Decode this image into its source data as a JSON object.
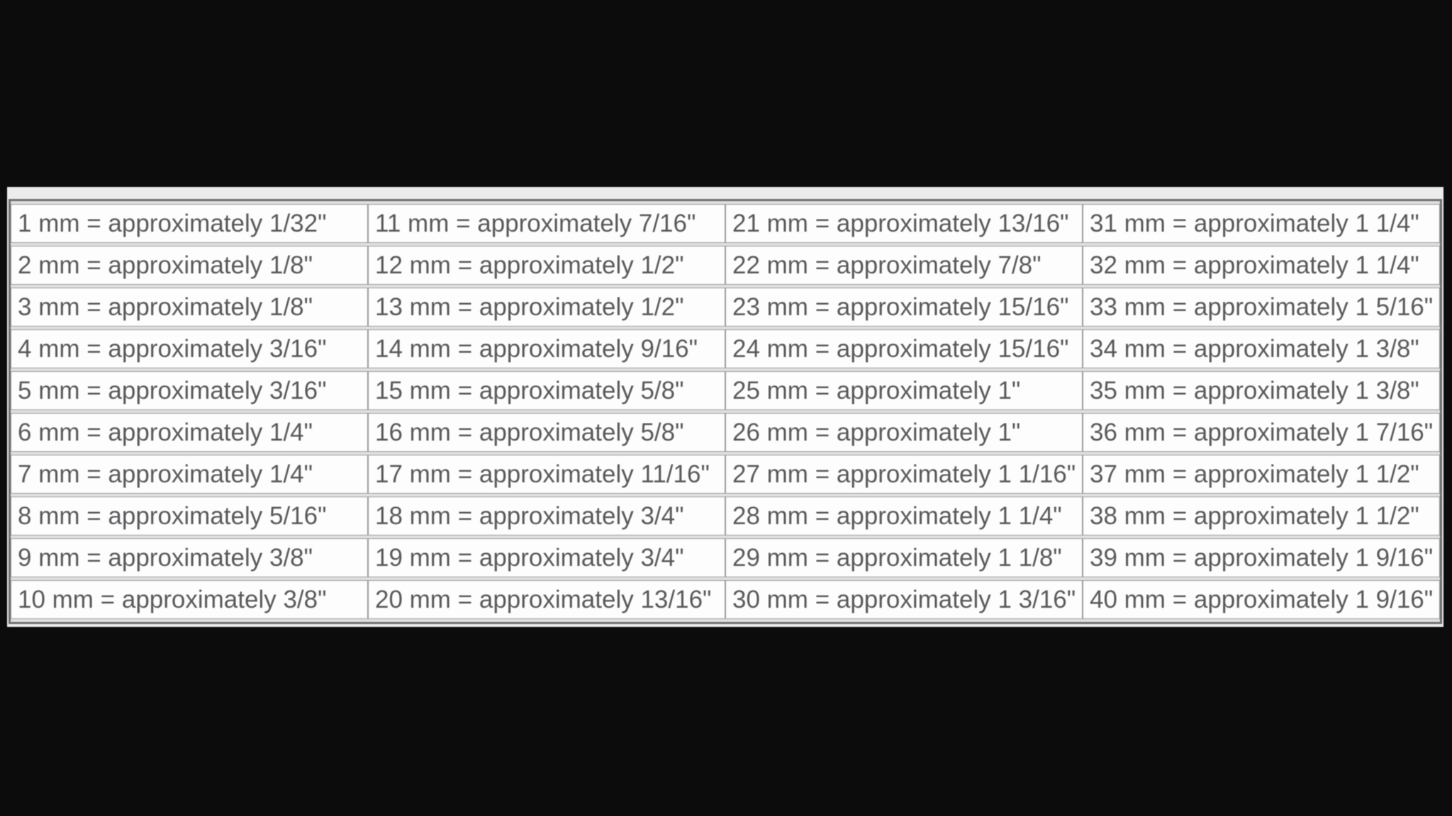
{
  "page": {
    "background_color": "#0c0c0c",
    "sheet_background_color": "#ececec",
    "cell_background_color": "#fdfdfd",
    "border_color": "#6e6e6e",
    "text_color": "#59595c"
  },
  "table": {
    "description": "Millimeters to approximate inches conversion table",
    "columns": [
      {
        "cells": [
          "1 mm = approximately 1/32\"",
          "2 mm = approximately 1/8\"",
          "3 mm = approximately 1/8\"",
          "4 mm = approximately 3/16\"",
          "5 mm = approximately 3/16\"",
          "6 mm = approximately 1/4\"",
          "7 mm = approximately 1/4\"",
          "8 mm = approximately 5/16\"",
          "9 mm = approximately 3/8\"",
          "10 mm = approximately 3/8\""
        ]
      },
      {
        "cells": [
          "11 mm = approximately 7/16\"",
          "12 mm = approximately 1/2\"",
          "13 mm = approximately 1/2\"",
          "14 mm = approximately 9/16\"",
          "15 mm = approximately 5/8\"",
          "16 mm = approximately 5/8\"",
          "17 mm = approximately 11/16\"",
          "18 mm = approximately 3/4\"",
          "19 mm = approximately 3/4\"",
          "20 mm = approximately 13/16\""
        ]
      },
      {
        "cells": [
          "21 mm = approximately 13/16\"",
          "22 mm = approximately 7/8\"",
          "23 mm = approximately 15/16\"",
          "24 mm = approximately 15/16\"",
          "25 mm = approximately 1\"",
          "26 mm = approximately 1\"",
          "27 mm = approximately 1 1/16\"",
          "28 mm = approximately 1 1/4\"",
          "29 mm = approximately 1 1/8\"",
          "30 mm = approximately 1 3/16\""
        ]
      },
      {
        "cells": [
          "31 mm = approximately 1 1/4\"",
          "32 mm = approximately 1 1/4\"",
          "33 mm = approximately 1 5/16\"",
          "34 mm = approximately 1 3/8\"",
          "35 mm = approximately 1 3/8\"",
          "36 mm = approximately 1 7/16\"",
          "37 mm = approximately 1 1/2\"",
          "38 mm = approximately 1 1/2\"",
          "39 mm = approximately 1 9/16\"",
          "40 mm = approximately 1 9/16\""
        ]
      }
    ]
  },
  "chart_data": {
    "type": "table",
    "title": "Millimeters to approximate inches conversion",
    "entries": [
      {
        "mm": 1,
        "inches": "1/32\""
      },
      {
        "mm": 2,
        "inches": "1/8\""
      },
      {
        "mm": 3,
        "inches": "1/8\""
      },
      {
        "mm": 4,
        "inches": "3/16\""
      },
      {
        "mm": 5,
        "inches": "3/16\""
      },
      {
        "mm": 6,
        "inches": "1/4\""
      },
      {
        "mm": 7,
        "inches": "1/4\""
      },
      {
        "mm": 8,
        "inches": "5/16\""
      },
      {
        "mm": 9,
        "inches": "3/8\""
      },
      {
        "mm": 10,
        "inches": "3/8\""
      },
      {
        "mm": 11,
        "inches": "7/16\""
      },
      {
        "mm": 12,
        "inches": "1/2\""
      },
      {
        "mm": 13,
        "inches": "1/2\""
      },
      {
        "mm": 14,
        "inches": "9/16\""
      },
      {
        "mm": 15,
        "inches": "5/8\""
      },
      {
        "mm": 16,
        "inches": "5/8\""
      },
      {
        "mm": 17,
        "inches": "11/16\""
      },
      {
        "mm": 18,
        "inches": "3/4\""
      },
      {
        "mm": 19,
        "inches": "3/4\""
      },
      {
        "mm": 20,
        "inches": "13/16\""
      },
      {
        "mm": 21,
        "inches": "13/16\""
      },
      {
        "mm": 22,
        "inches": "7/8\""
      },
      {
        "mm": 23,
        "inches": "15/16\""
      },
      {
        "mm": 24,
        "inches": "15/16\""
      },
      {
        "mm": 25,
        "inches": "1\""
      },
      {
        "mm": 26,
        "inches": "1\""
      },
      {
        "mm": 27,
        "inches": "1 1/16\""
      },
      {
        "mm": 28,
        "inches": "1 1/4\""
      },
      {
        "mm": 29,
        "inches": "1 1/8\""
      },
      {
        "mm": 30,
        "inches": "1 3/16\""
      },
      {
        "mm": 31,
        "inches": "1 1/4\""
      },
      {
        "mm": 32,
        "inches": "1 1/4\""
      },
      {
        "mm": 33,
        "inches": "1 5/16\""
      },
      {
        "mm": 34,
        "inches": "1 3/8\""
      },
      {
        "mm": 35,
        "inches": "1 3/8\""
      },
      {
        "mm": 36,
        "inches": "1 7/16\""
      },
      {
        "mm": 37,
        "inches": "1 1/2\""
      },
      {
        "mm": 38,
        "inches": "1 1/2\""
      },
      {
        "mm": 39,
        "inches": "1 9/16\""
      },
      {
        "mm": 40,
        "inches": "1 9/16\""
      }
    ]
  }
}
